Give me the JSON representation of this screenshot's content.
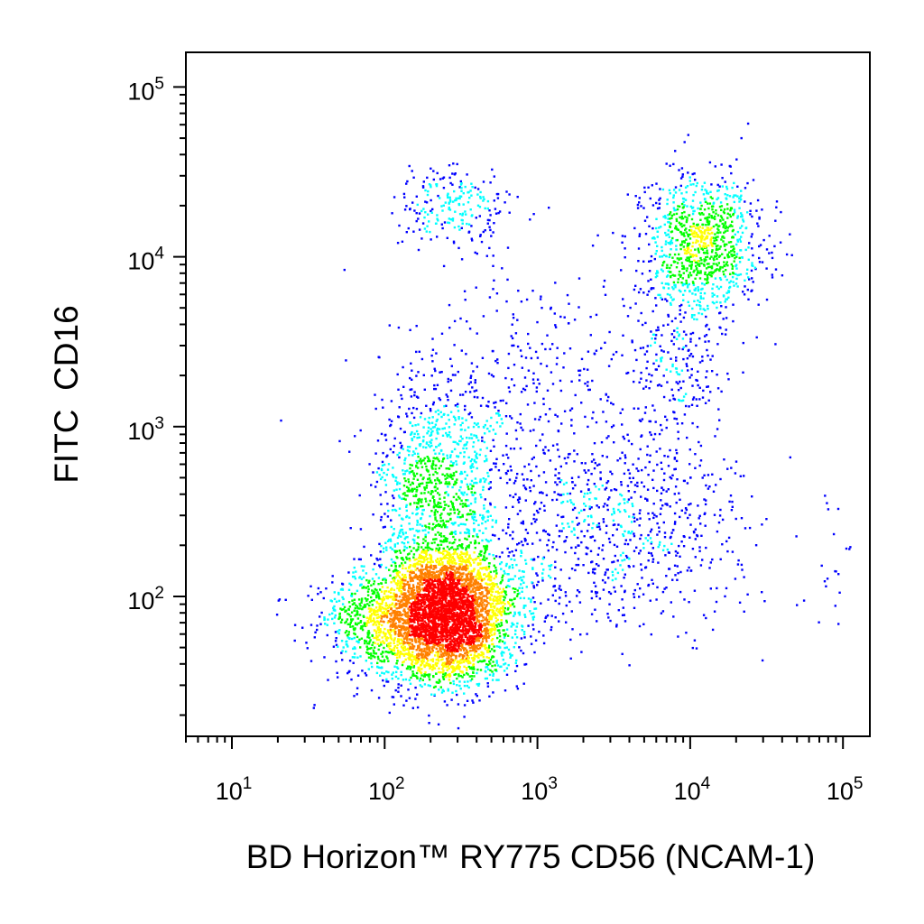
{
  "chart_data": {
    "type": "scatter",
    "subtype": "flow-cytometry-density-dot-plot",
    "xlabel": "BD Horizon™ RY775 CD56 (NCAM-1)",
    "ylabel": "FITC  CD16",
    "x_scale": "log",
    "y_scale": "log",
    "xlim": [
      5,
      150000
    ],
    "ylim": [
      15,
      160000
    ],
    "x_ticks": [
      {
        "value": 10,
        "base": "10",
        "exp": "1"
      },
      {
        "value": 100,
        "base": "10",
        "exp": "2"
      },
      {
        "value": 1000,
        "base": "10",
        "exp": "3"
      },
      {
        "value": 10000,
        "base": "10",
        "exp": "4"
      },
      {
        "value": 100000,
        "base": "10",
        "exp": "5"
      }
    ],
    "y_ticks": [
      {
        "value": 100,
        "base": "10",
        "exp": "2"
      },
      {
        "value": 1000,
        "base": "10",
        "exp": "3"
      },
      {
        "value": 10000,
        "base": "10",
        "exp": "4"
      },
      {
        "value": 100000,
        "base": "10",
        "exp": "5"
      }
    ],
    "grid": false,
    "legend": "none",
    "density_colors": [
      "#0000ff",
      "#00ffff",
      "#00ff00",
      "#ffff00",
      "#ff8000",
      "#ff0000"
    ],
    "populations": [
      {
        "x_center": 250,
        "y_center": 80,
        "x_spread_decades": 0.22,
        "y_spread_decades": 0.2,
        "count": 4200
      },
      {
        "x_center": 220,
        "y_center": 450,
        "x_spread_decades": 0.2,
        "y_spread_decades": 0.3,
        "count": 900
      },
      {
        "x_center": 280,
        "y_center": 20000,
        "x_spread_decades": 0.18,
        "y_spread_decades": 0.12,
        "count": 220
      },
      {
        "x_center": 12000,
        "y_center": 12000,
        "x_spread_decades": 0.2,
        "y_spread_decades": 0.2,
        "count": 900
      },
      {
        "x_center": 8000,
        "y_center": 3000,
        "x_spread_decades": 0.18,
        "y_spread_decades": 0.3,
        "count": 300
      },
      {
        "x_center": 3000,
        "y_center": 250,
        "x_spread_decades": 0.45,
        "y_spread_decades": 0.28,
        "count": 800
      },
      {
        "x_center": 80,
        "y_center": 70,
        "x_spread_decades": 0.2,
        "y_spread_decades": 0.15,
        "count": 500
      },
      {
        "x_center": 800,
        "y_center": 1500,
        "x_spread_decades": 0.45,
        "y_spread_decades": 0.4,
        "count": 400
      },
      {
        "x_center": 80000,
        "y_center": 150,
        "x_spread_decades": 0.1,
        "y_spread_decades": 0.2,
        "count": 20
      }
    ]
  }
}
